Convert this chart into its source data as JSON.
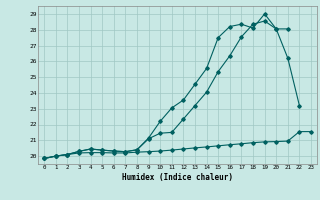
{
  "xlabel": "Humidex (Indice chaleur)",
  "xlim": [
    -0.5,
    23.5
  ],
  "ylim": [
    19.5,
    29.5
  ],
  "xticks": [
    0,
    1,
    2,
    3,
    4,
    5,
    6,
    7,
    8,
    9,
    10,
    11,
    12,
    13,
    14,
    15,
    16,
    17,
    18,
    19,
    20,
    21,
    22,
    23
  ],
  "yticks": [
    20,
    21,
    22,
    23,
    24,
    25,
    26,
    27,
    28,
    29
  ],
  "bg_color": "#c8e8e4",
  "grid_color": "#a0c8c4",
  "line_color": "#006060",
  "line1_y": [
    19.85,
    20.0,
    20.1,
    20.2,
    20.22,
    20.22,
    20.2,
    20.2,
    20.25,
    20.28,
    20.32,
    20.38,
    20.45,
    20.52,
    20.58,
    20.65,
    20.72,
    20.78,
    20.85,
    20.9,
    20.92,
    20.95,
    21.55,
    21.55
  ],
  "line2_y": [
    19.85,
    20.0,
    20.1,
    20.3,
    20.45,
    20.38,
    20.32,
    20.28,
    20.4,
    21.15,
    22.2,
    23.05,
    23.55,
    24.55,
    25.55,
    27.5,
    28.2,
    28.35,
    28.1,
    29.0,
    28.05,
    26.2,
    23.2,
    null
  ],
  "line3_y": [
    19.85,
    20.0,
    20.1,
    20.3,
    20.45,
    20.38,
    20.32,
    20.28,
    20.4,
    21.1,
    21.45,
    21.5,
    22.35,
    23.2,
    24.05,
    25.35,
    26.35,
    27.55,
    28.35,
    28.55,
    28.05,
    28.05,
    null,
    null
  ]
}
